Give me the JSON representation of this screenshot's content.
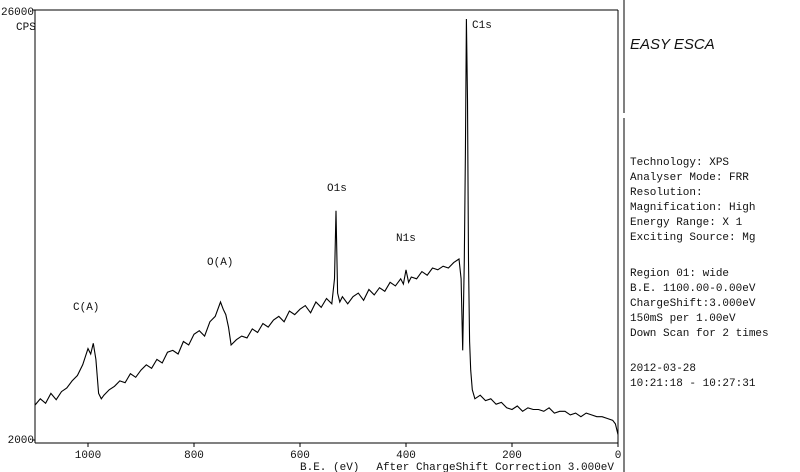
{
  "chart_data": {
    "type": "line",
    "color": "#000000",
    "y_label": "CPS",
    "x_label": "B.E. (eV)",
    "footnote": "After ChargeShift Correction 3.000eV",
    "xlim": [
      1100,
      0
    ],
    "ylim": [
      2000,
      26000
    ],
    "xticks": [
      1000,
      800,
      600,
      400,
      200,
      0
    ],
    "yticks": [
      2000,
      26000
    ],
    "grid": false,
    "annotations": [
      "C1s",
      "O1s",
      "N1s",
      "O(A)",
      "C(A)"
    ],
    "x": [
      1100,
      1090,
      1080,
      1070,
      1060,
      1050,
      1040,
      1030,
      1020,
      1010,
      1000,
      995,
      990,
      985,
      980,
      975,
      970,
      960,
      950,
      940,
      930,
      920,
      910,
      900,
      890,
      880,
      870,
      860,
      850,
      840,
      830,
      820,
      810,
      800,
      790,
      780,
      770,
      760,
      750,
      745,
      740,
      735,
      730,
      720,
      710,
      700,
      690,
      680,
      670,
      660,
      650,
      640,
      630,
      620,
      610,
      600,
      590,
      580,
      570,
      560,
      550,
      540,
      535,
      532,
      529,
      525,
      520,
      510,
      500,
      490,
      480,
      470,
      460,
      450,
      440,
      430,
      420,
      410,
      405,
      400,
      395,
      390,
      380,
      370,
      360,
      350,
      340,
      330,
      320,
      310,
      300,
      296,
      293,
      290,
      288,
      286,
      284,
      282,
      280,
      278,
      275,
      270,
      260,
      250,
      240,
      230,
      220,
      210,
      200,
      190,
      180,
      170,
      160,
      150,
      140,
      130,
      120,
      110,
      100,
      90,
      80,
      70,
      60,
      50,
      40,
      30,
      20,
      10,
      5,
      0
    ],
    "values": [
      3950,
      4300,
      4050,
      4600,
      4250,
      4700,
      4900,
      5300,
      5600,
      6200,
      7100,
      6800,
      7400,
      6500,
      4600,
      4300,
      4500,
      4800,
      5000,
      5300,
      5200,
      5700,
      5500,
      5900,
      6200,
      6000,
      6500,
      6300,
      6900,
      7000,
      6800,
      7500,
      7300,
      7900,
      8100,
      7800,
      8600,
      8900,
      9700,
      9300,
      9000,
      8300,
      7300,
      7600,
      7800,
      7700,
      8200,
      8000,
      8500,
      8300,
      8700,
      8900,
      8600,
      9200,
      9000,
      9300,
      9500,
      9100,
      9700,
      9400,
      9900,
      9600,
      11000,
      14800,
      10200,
      9700,
      10000,
      9600,
      10000,
      10200,
      9800,
      10400,
      10100,
      10500,
      10300,
      10800,
      10600,
      11000,
      10700,
      11500,
      10800,
      11100,
      11000,
      11400,
      11200,
      11600,
      11500,
      11700,
      11600,
      11900,
      12100,
      11000,
      7000,
      12000,
      18000,
      25500,
      21000,
      12000,
      7500,
      5900,
      4800,
      4300,
      4500,
      4200,
      4300,
      4000,
      4100,
      3800,
      3700,
      3900,
      3600,
      3800,
      3700,
      3700,
      3600,
      3800,
      3500,
      3600,
      3600,
      3400,
      3500,
      3300,
      3500,
      3400,
      3300,
      3300,
      3200,
      3100,
      2900,
      2300
    ]
  },
  "panel": {
    "title": "EASY ESCA",
    "groups": [
      [
        "Technology: XPS",
        "Analyser Mode: FRR",
        "Resolution:",
        "Magnification: High",
        "Energy Range: X 1",
        "Exciting Source: Mg"
      ],
      [
        "Region 01: wide",
        "B.E.  1100.00-0.00eV",
        "ChargeShift:3.000eV",
        "150mS per 1.00eV",
        "Down Scan for 2 times"
      ],
      [
        "2012-03-28",
        "10:21:18 - 10:27:31"
      ]
    ]
  }
}
